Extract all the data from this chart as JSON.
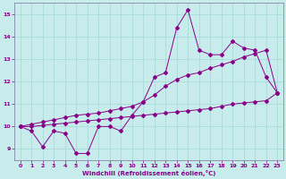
{
  "x_data": [
    0,
    1,
    2,
    3,
    4,
    5,
    6,
    7,
    8,
    9,
    10,
    11,
    12,
    13,
    14,
    15,
    16,
    17,
    18,
    19,
    20,
    21,
    22,
    23
  ],
  "line1_y": [
    10.0,
    9.8,
    9.1,
    9.8,
    9.7,
    8.8,
    8.8,
    10.0,
    10.0,
    9.8,
    10.5,
    11.1,
    12.2,
    12.4,
    14.4,
    15.2,
    13.4,
    13.2,
    13.2,
    13.8,
    13.5,
    13.4,
    12.2,
    11.5
  ],
  "line2_y": [
    10.0,
    10.1,
    10.2,
    10.3,
    10.4,
    10.5,
    10.55,
    10.6,
    10.7,
    10.8,
    10.9,
    11.1,
    11.4,
    11.8,
    12.1,
    12.3,
    12.4,
    12.6,
    12.75,
    12.9,
    13.1,
    13.25,
    13.4,
    11.5
  ],
  "line3_y": [
    10.0,
    10.0,
    10.05,
    10.1,
    10.15,
    10.2,
    10.25,
    10.3,
    10.35,
    10.4,
    10.45,
    10.5,
    10.55,
    10.6,
    10.65,
    10.7,
    10.75,
    10.8,
    10.9,
    11.0,
    11.05,
    11.1,
    11.15,
    11.5
  ],
  "line_color": "#880088",
  "bg_color": "#c8ecec",
  "grid_color": "#a0d8d8",
  "axis_label_color": "#880088",
  "xlabel": "Windchill (Refroidissement éolien,°C)",
  "ylim": [
    8.5,
    15.5
  ],
  "xlim": [
    -0.5,
    23.5
  ],
  "yticks": [
    9,
    10,
    11,
    12,
    13,
    14,
    15
  ],
  "xticks": [
    0,
    1,
    2,
    3,
    4,
    5,
    6,
    7,
    8,
    9,
    10,
    11,
    12,
    13,
    14,
    15,
    16,
    17,
    18,
    19,
    20,
    21,
    22,
    23
  ],
  "figsize": [
    3.2,
    2.0
  ],
  "dpi": 100
}
